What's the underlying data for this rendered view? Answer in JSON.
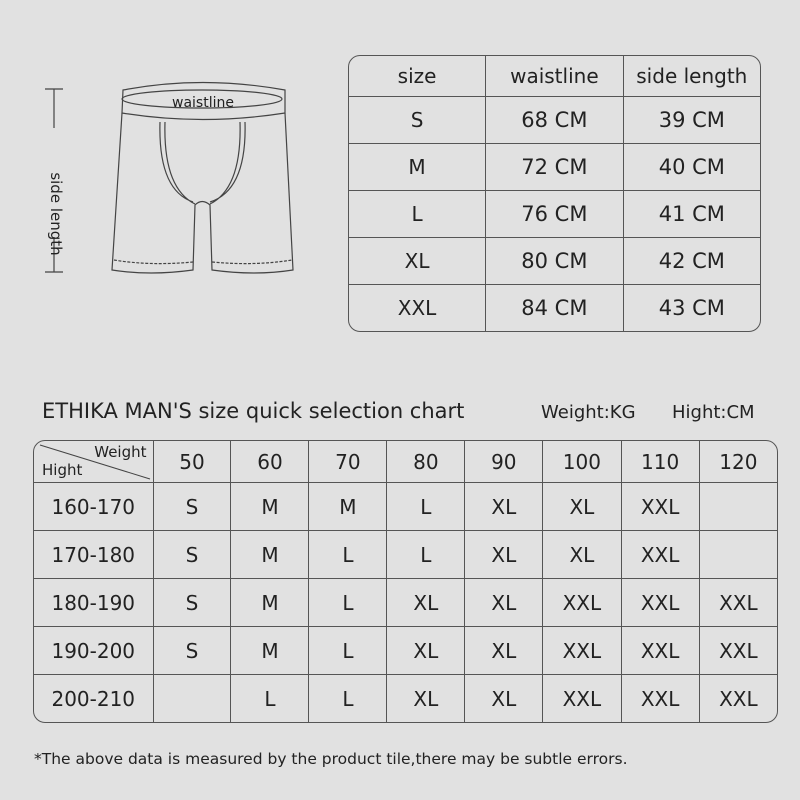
{
  "diagram": {
    "waistline_label": "waistline",
    "side_length_label": "side length"
  },
  "size_table": {
    "headers": [
      "size",
      "waistline",
      "side length"
    ],
    "rows": [
      [
        "S",
        "68 CM",
        "39 CM"
      ],
      [
        "M",
        "72 CM",
        "40 CM"
      ],
      [
        "L",
        "76 CM",
        "41 CM"
      ],
      [
        "XL",
        "80 CM",
        "42 CM"
      ],
      [
        "XXL",
        "84 CM",
        "43 CM"
      ]
    ]
  },
  "quick_chart": {
    "title": "ETHIKA MAN'S size quick selection chart",
    "weight_unit": "Weight:KG",
    "height_unit": "Hight:CM",
    "corner_weight": "Weight",
    "corner_height": "Hight",
    "weights": [
      "50",
      "60",
      "70",
      "80",
      "90",
      "100",
      "110",
      "120"
    ],
    "rows": [
      {
        "height": "160-170",
        "sizes": [
          "S",
          "M",
          "M",
          "L",
          "XL",
          "XL",
          "XXL",
          ""
        ]
      },
      {
        "height": "170-180",
        "sizes": [
          "S",
          "M",
          "L",
          "L",
          "XL",
          "XL",
          "XXL",
          ""
        ]
      },
      {
        "height": "180-190",
        "sizes": [
          "S",
          "M",
          "L",
          "XL",
          "XL",
          "XXL",
          "XXL",
          "XXL"
        ]
      },
      {
        "height": "190-200",
        "sizes": [
          "S",
          "M",
          "L",
          "XL",
          "XL",
          "XXL",
          "XXL",
          "XXL"
        ]
      },
      {
        "height": "200-210",
        "sizes": [
          "",
          "L",
          "L",
          "XL",
          "XL",
          "XXL",
          "XXL",
          "XXL"
        ]
      }
    ]
  },
  "footnote": "*The above data is measured by the product tile,there may be subtle errors."
}
